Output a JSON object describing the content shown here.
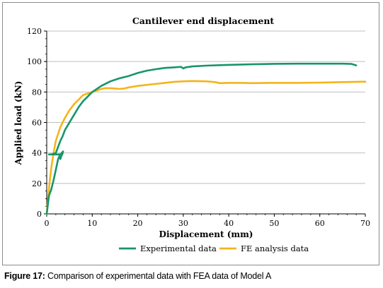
{
  "chart_data": {
    "type": "line",
    "title": "Cantilever end displacement",
    "xlabel": "Displacement (mm)",
    "ylabel": "Applied load (kN)",
    "xlim": [
      0,
      70
    ],
    "ylim": [
      0,
      120
    ],
    "xticks": [
      "0",
      "10",
      "20",
      "30",
      "40",
      "50",
      "60",
      "70"
    ],
    "yticks": [
      "0",
      "20",
      "40",
      "60",
      "80",
      "100",
      "120"
    ],
    "grid": "horizontal",
    "legend_position": "bottom",
    "series": [
      {
        "name": "Experimental data",
        "color": "#17956a",
        "x": [
          0.0,
          0.5,
          1.0,
          1.5,
          2.0,
          2.5,
          2.8,
          3.0,
          3.2,
          3.4,
          3.5,
          3.6,
          3.3,
          3.0,
          2.0,
          1.0,
          0.5,
          1.0,
          2.0,
          2.5,
          3.0,
          3.5,
          4.0,
          5.0,
          6.0,
          7.0,
          8.0,
          10.0,
          12.0,
          14.0,
          16.0,
          18.0,
          20.0,
          22.0,
          24.0,
          26.0,
          28.0,
          29.5,
          30.0,
          30.5,
          32.0,
          35.0,
          38.0,
          40.0,
          45.0,
          50.0,
          55.0,
          60.0,
          65.0,
          67.0,
          68.0
        ],
        "y": [
          0,
          12,
          16,
          22,
          29,
          36,
          38,
          36,
          38,
          39,
          40,
          41,
          40,
          39,
          39,
          39,
          39,
          39,
          40,
          44,
          48,
          51,
          55,
          60,
          65,
          70,
          74,
          80,
          84,
          87,
          89,
          90.5,
          92.5,
          94,
          95,
          95.8,
          96.2,
          96.5,
          95.5,
          96.2,
          96.8,
          97.3,
          97.6,
          97.8,
          98.2,
          98.5,
          98.6,
          98.6,
          98.6,
          98.4,
          97.5
        ]
      },
      {
        "name": "FE analysis data",
        "color": "#f4b41a",
        "x": [
          0.0,
          0.3,
          0.6,
          1.0,
          1.5,
          2.0,
          3.0,
          4.0,
          5.0,
          6.0,
          7.0,
          8.0,
          10.0,
          12.0,
          13.0,
          14.0,
          15.0,
          16.0,
          17.0,
          18.0,
          20.0,
          23.0,
          26.0,
          28.0,
          30.0,
          32.0,
          35.0,
          37.0,
          38.0,
          40.0,
          43.0,
          45.0,
          50.0,
          55.0,
          60.0,
          65.0,
          70.0
        ],
        "y": [
          0,
          10,
          20,
          30,
          40,
          48,
          57,
          63,
          68,
          72,
          75,
          78,
          80,
          82,
          82.5,
          82.5,
          82.3,
          82.0,
          82.3,
          83,
          84,
          85,
          86,
          86.7,
          87,
          87.2,
          87,
          86.5,
          85.8,
          86,
          86,
          85.8,
          86,
          86,
          86.2,
          86.5,
          86.8
        ]
      }
    ]
  },
  "caption": {
    "label": "Figure 17:",
    "text": " Comparison of experimental data with FEA data of Model A"
  }
}
